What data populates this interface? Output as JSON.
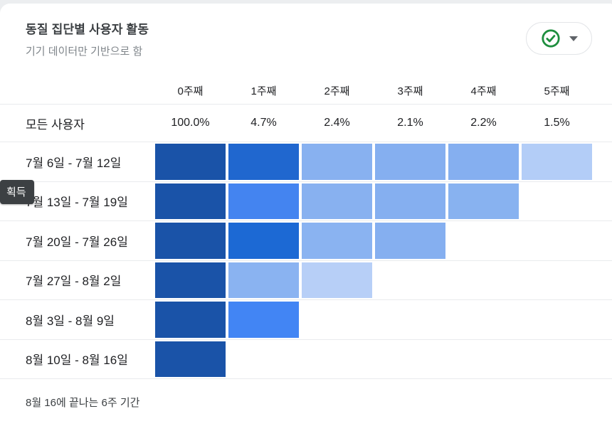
{
  "card": {
    "acquisition_badge": "획득"
  },
  "status_button": {
    "check_color": "#1e8e3e",
    "caret_color": "#5f6368"
  },
  "chart_data": {
    "type": "heatmap",
    "title": "동질 집단별 사용자 활동",
    "subtitle": "기기 데이터만 기반으로 함",
    "columns": [
      "0주째",
      "1주째",
      "2주째",
      "3주째",
      "4주째",
      "5주째"
    ],
    "all_users": {
      "label": "모든 사용자",
      "values": [
        "100.0%",
        "4.7%",
        "2.4%",
        "2.1%",
        "2.2%",
        "1.5%"
      ]
    },
    "rows": [
      {
        "label": "7월 6일 - 7월 12일",
        "cells": [
          "#1a53a8",
          "#2067cf",
          "#88b1f0",
          "#85aff0",
          "#85aff0",
          "#b3cdf7"
        ]
      },
      {
        "label": "7월 13일 - 7월 19일",
        "cells": [
          "#1a53a8",
          "#4484f0",
          "#88b1f0",
          "#85aff0",
          "#88b2f0",
          null
        ]
      },
      {
        "label": "7월 20일 - 7월 26일",
        "cells": [
          "#1a53a8",
          "#1c69d4",
          "#8ab3f1",
          "#85aff0",
          null,
          null
        ]
      },
      {
        "label": "7월 27일 - 8월 2일",
        "cells": [
          "#1a53a8",
          "#8ab3f1",
          "#b7cff7",
          null,
          null,
          null
        ]
      },
      {
        "label": "8월 3일 - 8월 9일",
        "cells": [
          "#1a53a8",
          "#4285f4",
          null,
          null,
          null,
          null
        ]
      },
      {
        "label": "8월 10일 - 8월 16일",
        "cells": [
          "#1a53a8",
          null,
          null,
          null,
          null,
          null
        ]
      }
    ],
    "legend_position": "none",
    "footer": "8월 16에 끝나는 6주 기간"
  }
}
